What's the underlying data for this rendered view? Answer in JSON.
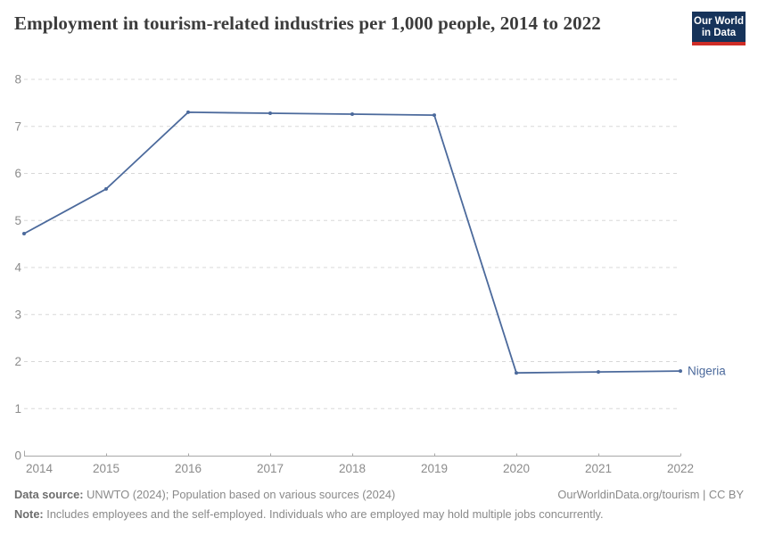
{
  "header": {
    "title": "Employment in tourism-related industries per 1,000 people, 2014 to 2022",
    "logo": {
      "line1": "Our World",
      "line2": "in Data"
    }
  },
  "colors": {
    "brand_navy": "#16335a",
    "brand_red": "#cf2d27",
    "series_blue": "#4C6A9C",
    "grid_gray": "#d8d8d8",
    "axis_gray": "#a8a8a8",
    "tick_text_gray": "#8b8b8b"
  },
  "chart_data": {
    "type": "line",
    "title": "Employment in tourism-related industries per 1,000 people, 2014 to 2022",
    "x": [
      2014,
      2015,
      2016,
      2017,
      2018,
      2019,
      2020,
      2021,
      2022
    ],
    "series": [
      {
        "name": "Nigeria",
        "color": "#4C6A9C",
        "values": [
          4.72,
          5.67,
          7.3,
          7.28,
          7.26,
          7.24,
          1.76,
          1.78,
          1.8
        ]
      }
    ],
    "xlabel": "",
    "ylabel": "",
    "ylim": [
      0,
      8
    ],
    "yticks": [
      0,
      1,
      2,
      3,
      4,
      5,
      6,
      7,
      8
    ],
    "grid": true,
    "grid_style": "dashed",
    "legend_position": "end-of-line"
  },
  "footer": {
    "datasource_label": "Data source:",
    "datasource_text": " UNWTO (2024); Population based on various sources (2024)",
    "link_text": "OurWorldinData.org/tourism | CC BY",
    "note_label": "Note:",
    "note_text": " Includes employees and the self-employed. Individuals who are employed may hold multiple jobs concurrently."
  }
}
